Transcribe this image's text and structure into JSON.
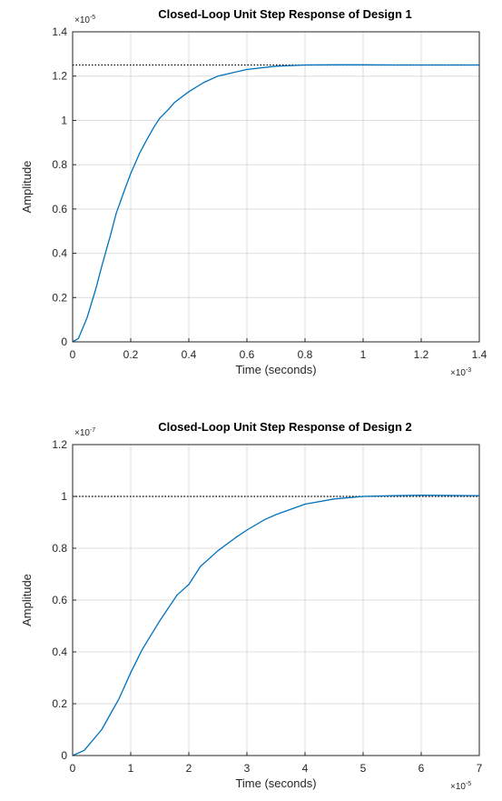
{
  "chart_data": [
    {
      "type": "line",
      "title": "Closed-Loop Unit Step Response of Design 1",
      "xlabel": "Time (seconds)",
      "ylabel": "Amplitude",
      "xlim": [
        0,
        0.0014
      ],
      "ylim": [
        0,
        1.4e-05
      ],
      "x_exponent_label": "×10",
      "x_exponent_power": "-3",
      "y_exponent_label": "×10",
      "y_exponent_power": "-5",
      "xticks": [
        0,
        0.0002,
        0.0004,
        0.0006,
        0.0008,
        0.001,
        0.0012,
        0.0014
      ],
      "xtick_labels": [
        "0",
        "0.2",
        "0.4",
        "0.6",
        "0.8",
        "1",
        "1.2",
        "1.4"
      ],
      "yticks": [
        0,
        2e-06,
        4e-06,
        6e-06,
        8e-06,
        1e-05,
        1.2e-05,
        1.4e-05
      ],
      "ytick_labels": [
        "0",
        "0.2",
        "0.4",
        "0.6",
        "0.8",
        "1",
        "1.2",
        "1.4"
      ],
      "grid": true,
      "steady_state": 1.25e-05,
      "series": [
        {
          "x": [
            0,
            2e-05,
            5e-05,
            8e-05,
            0.0001,
            0.00013,
            0.00015,
            0.00018,
            0.0002,
            0.00023,
            0.00025,
            0.00028,
            0.0003,
            0.00033,
            0.00035,
            0.0004,
            0.00045,
            0.0005,
            0.0006,
            0.0007,
            0.0008,
            0.0009,
            0.001,
            0.0011,
            0.0012,
            0.0013,
            0.0014
          ],
          "y": [
            0,
            1.5e-07,
            1.1e-06,
            2.4e-06,
            3.4e-06,
            4.8e-06,
            5.8e-06,
            6.9e-06,
            7.6e-06,
            8.5e-06,
            9e-06,
            9.7e-06,
            1.01e-05,
            1.05e-05,
            1.08e-05,
            1.13e-05,
            1.17e-05,
            1.2e-05,
            1.23e-05,
            1.245e-05,
            1.25e-05,
            1.251e-05,
            1.251e-05,
            1.25e-05,
            1.25e-05,
            1.25e-05,
            1.25e-05
          ]
        }
      ],
      "colors": {
        "line": "#0072BD",
        "reference": "#000000",
        "grid": "#DCDCDC",
        "axes": "#262626"
      }
    },
    {
      "type": "line",
      "title": "Closed-Loop Unit Step Response of Design 2",
      "xlabel": "Time (seconds)",
      "ylabel": "Amplitude",
      "xlim": [
        0,
        7e-05
      ],
      "ylim": [
        0,
        1.2e-07
      ],
      "x_exponent_label": "×10",
      "x_exponent_power": "-5",
      "y_exponent_label": "×10",
      "y_exponent_power": "-7",
      "xticks": [
        0,
        1e-05,
        2e-05,
        3e-05,
        4e-05,
        5e-05,
        6e-05,
        7e-05
      ],
      "xtick_labels": [
        "0",
        "1",
        "2",
        "3",
        "4",
        "5",
        "6",
        "7"
      ],
      "yticks": [
        0,
        2e-08,
        4e-08,
        6e-08,
        8e-08,
        1e-07,
        1.2e-07
      ],
      "ytick_labels": [
        "0",
        "0.2",
        "0.4",
        "0.6",
        "0.8",
        "1",
        "1.2"
      ],
      "grid": true,
      "steady_state": 1e-07,
      "series": [
        {
          "x": [
            0,
            2e-06,
            5e-06,
            8e-06,
            1e-05,
            1.2e-05,
            1.5e-05,
            1.8e-05,
            2e-05,
            2.2e-05,
            2.5e-05,
            2.8e-05,
            3e-05,
            3.3e-05,
            3.5e-05,
            4e-05,
            4.5e-05,
            5e-05,
            5.5e-05,
            6e-05,
            6.5e-05,
            7e-05
          ],
          "y": [
            0,
            2e-09,
            1e-08,
            2.2e-08,
            3.2e-08,
            4.1e-08,
            5.2e-08,
            6.2e-08,
            6.6e-08,
            7.3e-08,
            7.9e-08,
            8.4e-08,
            8.7e-08,
            9.1e-08,
            9.3e-08,
            9.7e-08,
            9.9e-08,
            1e-07,
            1.003e-07,
            1.005e-07,
            1.004e-07,
            1.003e-07
          ]
        }
      ],
      "colors": {
        "line": "#0072BD",
        "reference": "#000000",
        "grid": "#DCDCDC",
        "axes": "#262626"
      }
    }
  ]
}
